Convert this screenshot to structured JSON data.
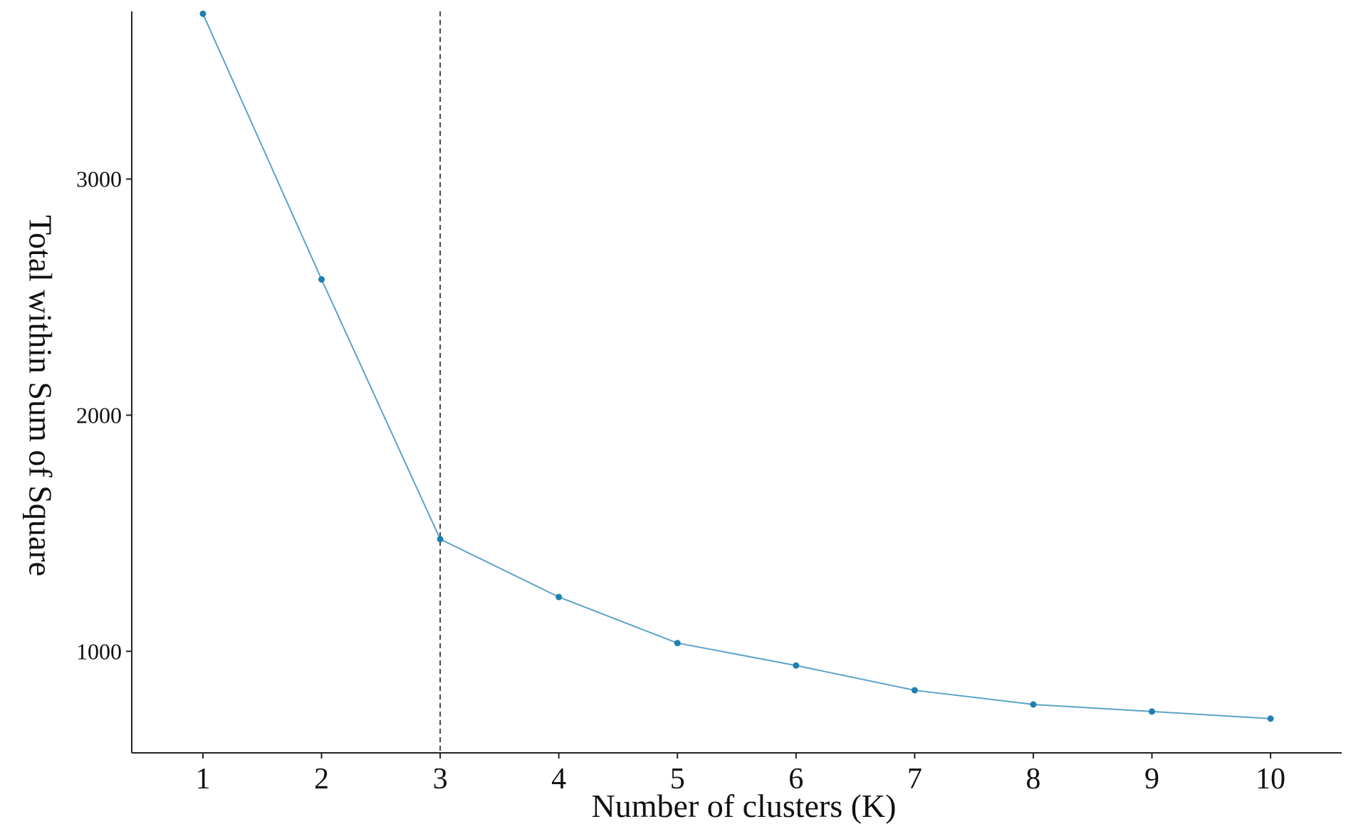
{
  "chart_data": {
    "type": "line",
    "title": "",
    "xlabel": "Number of clusters (K)",
    "ylabel": "Total within Sum of Square",
    "x": [
      1,
      2,
      3,
      4,
      5,
      6,
      7,
      8,
      9,
      10
    ],
    "x_tick_labels": [
      "1",
      "2",
      "3",
      "4",
      "5",
      "6",
      "7",
      "8",
      "9",
      "10"
    ],
    "y_ticks": [
      1000,
      2000,
      3000
    ],
    "y_tick_labels": [
      "1000",
      "2000",
      "3000"
    ],
    "xlim": [
      0.4,
      10.6
    ],
    "ylim": [
      570,
      3710
    ],
    "series": [
      {
        "values": [
          3700,
          2575,
          1475,
          1230,
          1035,
          940,
          835,
          775,
          745,
          715
        ]
      }
    ],
    "annotations": [
      {
        "type": "vertical-dashed-line",
        "x": 3
      }
    ],
    "grid": false,
    "legend": "none",
    "colors": {
      "line": "#5ba3c9",
      "marker": "#1f7fb0",
      "axis": "#222222",
      "reference_line": "#444444"
    }
  }
}
